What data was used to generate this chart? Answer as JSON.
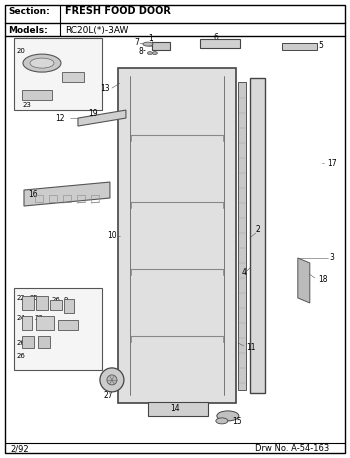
{
  "title_section": "Section:",
  "title_section_val": "FRESH FOOD DOOR",
  "title_models": "Models:",
  "title_models_val": "RC20L(*)-3AW",
  "footer_left": "2/92",
  "footer_right": "Drw No. A-54-163",
  "bg_color": "#ffffff",
  "border_color": "#000000",
  "line_color": "#333333",
  "part_color": "#aaaaaa",
  "part_outline": "#555555"
}
